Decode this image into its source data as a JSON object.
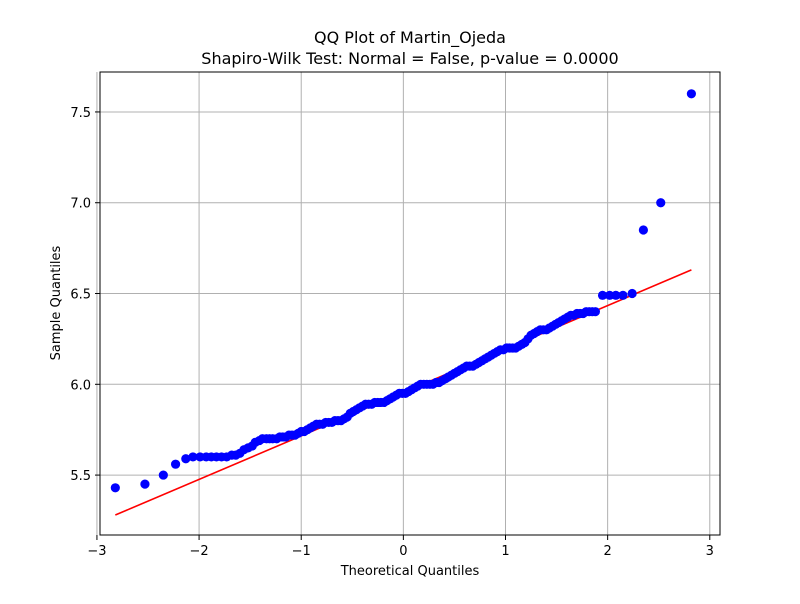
{
  "chart_data": {
    "type": "scatter",
    "title": "QQ Plot of Martin_Ojeda",
    "subtitle": "Shapiro-Wilk Test: Normal = False, p-value = 0.0000",
    "xlabel": "Theoretical Quantiles",
    "ylabel": "Sample Quantiles",
    "xlim": [
      -2.97,
      3.1
    ],
    "ylim": [
      5.17,
      7.72
    ],
    "xticks": [
      -3,
      -2,
      -1,
      0,
      1,
      2,
      3
    ],
    "xtick_labels": [
      "−3",
      "−2",
      "−1",
      "0",
      "1",
      "2",
      "3"
    ],
    "yticks": [
      5.5,
      6.0,
      6.5,
      7.0,
      7.5
    ],
    "ytick_labels": [
      "5.5",
      "6.0",
      "6.5",
      "7.0",
      "7.5"
    ],
    "grid": true,
    "colors": {
      "points": "#0000ff",
      "line": "#ff0000",
      "grid": "#b0b0b0",
      "axes": "#000000"
    },
    "series": [
      {
        "kind": "points",
        "x": [
          -2.82,
          -2.53,
          -2.35,
          -2.23,
          -2.13,
          -2.06,
          -1.99,
          -1.93,
          -1.88,
          -1.83,
          -1.78,
          -1.73,
          -1.68,
          -1.64,
          -1.6,
          -1.56,
          -1.52,
          -1.48,
          -1.45,
          -1.41,
          -1.38,
          -1.34,
          -1.31,
          -1.28,
          -1.24,
          -1.21,
          -1.18,
          -1.15,
          -1.12,
          -1.09,
          -1.06,
          -1.03,
          -1.0,
          -0.97,
          -0.94,
          -0.91,
          -0.88,
          -0.85,
          -0.82,
          -0.79,
          -0.76,
          -0.73,
          -0.7,
          -0.67,
          -0.64,
          -0.61,
          -0.58,
          -0.55,
          -0.52,
          -0.49,
          -0.46,
          -0.43,
          -0.4,
          -0.37,
          -0.34,
          -0.31,
          -0.28,
          -0.25,
          -0.22,
          -0.19,
          -0.16,
          -0.13,
          -0.1,
          -0.07,
          -0.04,
          -0.01,
          0.02,
          0.05,
          0.08,
          0.11,
          0.14,
          0.17,
          0.2,
          0.23,
          0.26,
          0.29,
          0.32,
          0.35,
          0.38,
          0.41,
          0.44,
          0.47,
          0.5,
          0.53,
          0.56,
          0.59,
          0.62,
          0.65,
          0.68,
          0.71,
          0.74,
          0.77,
          0.8,
          0.83,
          0.86,
          0.89,
          0.92,
          0.95,
          0.98,
          1.01,
          1.04,
          1.07,
          1.1,
          1.13,
          1.16,
          1.19,
          1.22,
          1.25,
          1.28,
          1.31,
          1.34,
          1.37,
          1.4,
          1.43,
          1.46,
          1.49,
          1.52,
          1.55,
          1.58,
          1.61,
          1.64,
          1.67,
          1.7,
          1.73,
          1.76,
          1.79,
          1.82,
          1.85,
          1.88,
          1.95,
          2.02,
          2.08,
          2.15,
          2.24,
          2.35,
          2.52,
          2.82
        ],
        "y": [
          5.43,
          5.45,
          5.5,
          5.56,
          5.59,
          5.6,
          5.6,
          5.6,
          5.6,
          5.6,
          5.6,
          5.6,
          5.61,
          5.61,
          5.62,
          5.64,
          5.65,
          5.66,
          5.68,
          5.69,
          5.7,
          5.7,
          5.7,
          5.7,
          5.7,
          5.71,
          5.71,
          5.71,
          5.72,
          5.72,
          5.72,
          5.73,
          5.74,
          5.74,
          5.75,
          5.76,
          5.77,
          5.78,
          5.78,
          5.78,
          5.79,
          5.79,
          5.79,
          5.8,
          5.8,
          5.8,
          5.81,
          5.82,
          5.84,
          5.85,
          5.86,
          5.87,
          5.88,
          5.89,
          5.89,
          5.89,
          5.9,
          5.9,
          5.9,
          5.9,
          5.91,
          5.92,
          5.93,
          5.94,
          5.95,
          5.95,
          5.95,
          5.96,
          5.97,
          5.98,
          5.99,
          6.0,
          6.0,
          6.0,
          6.0,
          6.0,
          6.01,
          6.01,
          6.02,
          6.03,
          6.04,
          6.05,
          6.06,
          6.07,
          6.08,
          6.09,
          6.1,
          6.1,
          6.1,
          6.11,
          6.12,
          6.13,
          6.14,
          6.15,
          6.16,
          6.17,
          6.18,
          6.19,
          6.19,
          6.2,
          6.2,
          6.2,
          6.2,
          6.21,
          6.22,
          6.23,
          6.25,
          6.27,
          6.28,
          6.29,
          6.3,
          6.3,
          6.3,
          6.31,
          6.32,
          6.33,
          6.34,
          6.35,
          6.36,
          6.37,
          6.38,
          6.38,
          6.39,
          6.39,
          6.39,
          6.4,
          6.4,
          6.4,
          6.4,
          6.49,
          6.49,
          6.49,
          6.49,
          6.5,
          6.85,
          7.0,
          7.6
        ]
      },
      {
        "kind": "line",
        "x": [
          -2.82,
          2.82
        ],
        "y": [
          5.28,
          6.63
        ]
      }
    ]
  }
}
